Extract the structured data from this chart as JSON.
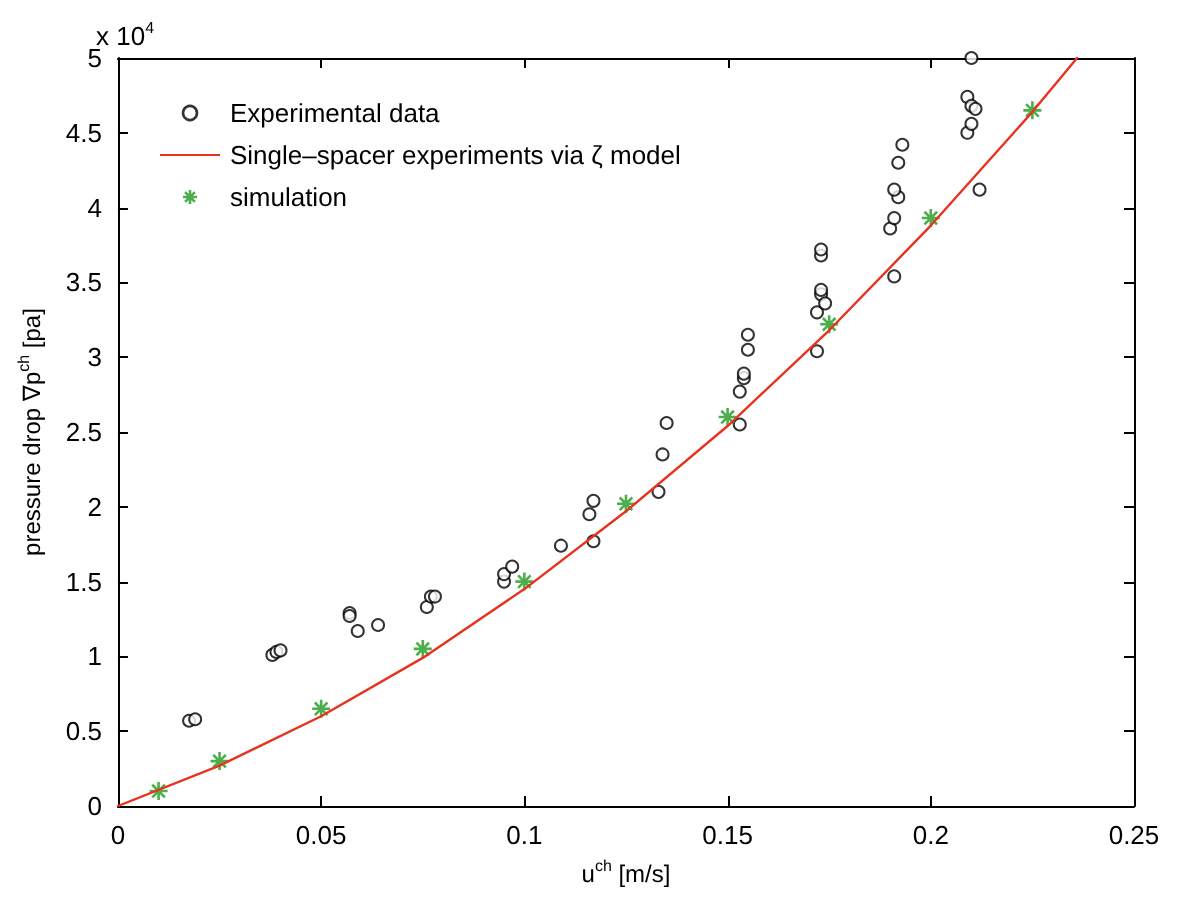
{
  "chart_data": {
    "type": "scatter",
    "xlabel": "u$^{ch}$ [m/s]",
    "ylabel": "pressure drop ∇p$^{ch}$ [pa]",
    "annotations": [
      "x 10$^{4}$"
    ],
    "xlim": [
      0,
      0.25
    ],
    "xticks": [
      0,
      0.05,
      0.1,
      0.15,
      0.2,
      0.25
    ],
    "ylim": [
      0,
      5
    ],
    "yticks": [
      0,
      0.5,
      1,
      1.5,
      2,
      2.5,
      3,
      3.5,
      4,
      4.5,
      5
    ],
    "grid": false,
    "legend": "top left",
    "series": [
      {
        "name": "Experimental data",
        "marker": "circle",
        "color": "#000000",
        "x": [
          0.0175,
          0.019,
          0.038,
          0.039,
          0.04,
          0.057,
          0.057,
          0.059,
          0.064,
          0.076,
          0.077,
          0.078,
          0.095,
          0.095,
          0.097,
          0.109,
          0.116,
          0.117,
          0.117,
          0.133,
          0.134,
          0.135,
          0.153,
          0.153,
          0.154,
          0.154,
          0.155,
          0.155,
          0.172,
          0.172,
          0.173,
          0.173,
          0.174,
          0.173,
          0.173,
          0.191,
          0.19,
          0.192,
          0.191,
          0.192,
          0.193,
          0.191,
          0.209,
          0.21,
          0.209,
          0.21,
          0.211,
          0.212,
          0.21
        ],
        "values": [
          0.57,
          0.58,
          1.01,
          1.03,
          1.04,
          1.29,
          1.27,
          1.17,
          1.21,
          1.33,
          1.4,
          1.4,
          1.5,
          1.55,
          1.6,
          1.74,
          1.95,
          2.04,
          1.77,
          2.1,
          2.35,
          2.56,
          2.55,
          2.77,
          2.86,
          2.89,
          3.05,
          3.15,
          3.04,
          3.3,
          3.42,
          3.45,
          3.36,
          3.68,
          3.72,
          3.54,
          3.86,
          4.07,
          4.12,
          4.3,
          4.42,
          3.93,
          4.5,
          4.56,
          4.74,
          4.68,
          4.66,
          4.12,
          5.0
        ]
      },
      {
        "name": "Single–spacer experiments via ζ model",
        "type": "line",
        "marker": "none",
        "line_style": "solid",
        "color": "#e8321e",
        "x": [
          0,
          0.025,
          0.05,
          0.075,
          0.1,
          0.125,
          0.15,
          0.175,
          0.2,
          0.225,
          0.236
        ],
        "values": [
          0,
          0.27,
          0.6,
          0.99,
          1.45,
          1.97,
          2.54,
          3.18,
          3.88,
          4.64,
          5.0
        ]
      },
      {
        "name": "simulation",
        "type": "scatter",
        "marker": "cross",
        "color": "#1f9a1f",
        "x": [
          0.01,
          0.025,
          0.05,
          0.075,
          0.1,
          0.125,
          0.15,
          0.175,
          0.2,
          0.225
        ],
        "values": [
          0.1,
          0.3,
          0.65,
          1.05,
          1.5,
          2.02,
          2.6,
          3.22,
          3.93,
          4.65
        ]
      }
    ]
  }
}
